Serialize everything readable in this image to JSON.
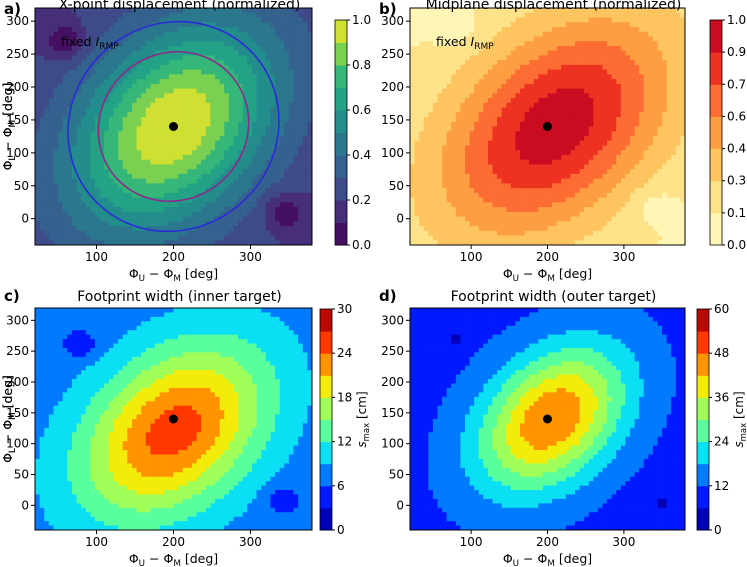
{
  "chart_data": [
    {
      "panel_letter": "a)",
      "type": "heatmap",
      "title": "X-point displacement (normalized)",
      "annotation_main": "fixed ",
      "annotation_italic": "I",
      "annotation_sub": "RMP",
      "xlabel_main": "Φ",
      "xlabel_sub1": "U",
      "xlabel_mid": " − Φ",
      "xlabel_sub2": "M",
      "xlabel_unit": " [deg]",
      "ylabel_main": "Φ",
      "ylabel_sub1": "L",
      "ylabel_mid": " − Φ",
      "ylabel_sub2": "M",
      "ylabel_unit": " [deg]",
      "xlim": [
        20,
        380
      ],
      "ylim": [
        -40,
        320
      ],
      "x_ticks": [
        "100",
        "200",
        "300"
      ],
      "y_ticks": [
        "0",
        "50",
        "100",
        "150",
        "200",
        "250",
        "300"
      ],
      "colormap": "viridis",
      "colorbar_ticks": [
        "0.0",
        "0.2",
        "0.4",
        "0.6",
        "0.8",
        "1.0"
      ],
      "colorbar_range": [
        0,
        1
      ],
      "levels": [
        0.1,
        0.2,
        0.3,
        0.4,
        0.5,
        0.6,
        0.7,
        0.8,
        0.9
      ],
      "field": {
        "center": [
          200,
          140
        ],
        "peak": 1.0,
        "sx": 135,
        "sy": 160,
        "rho": 0.35,
        "base": 0.18,
        "lobes": [
          [
            60,
            270,
            -0.22,
            26
          ],
          [
            345,
            10,
            -0.2,
            26
          ]
        ]
      },
      "peak_marker": {
        "x": 200,
        "y": 140
      },
      "contour_lines": [
        {
          "level": 0.4,
          "color": "#2a2ad8"
        },
        {
          "level": 0.6,
          "color": "#8a2a8a"
        }
      ]
    },
    {
      "panel_letter": "b)",
      "type": "heatmap",
      "title": "Midplane displacement (normalized)",
      "annotation_main": "fixed ",
      "annotation_italic": "I",
      "annotation_sub": "RMP",
      "xlabel_main": "Φ",
      "xlabel_sub1": "U",
      "xlabel_mid": " − Φ",
      "xlabel_sub2": "M",
      "xlabel_unit": " [deg]",
      "ylabel_main": "Φ",
      "ylabel_sub1": "L",
      "ylabel_mid": " − Φ",
      "ylabel_sub2": "M",
      "ylabel_unit": " [deg]",
      "xlim": [
        20,
        380
      ],
      "ylim": [
        -40,
        320
      ],
      "x_ticks": [
        "100",
        "200",
        "300"
      ],
      "y_ticks": [
        "0",
        "50",
        "100",
        "150",
        "200",
        "250",
        "300"
      ],
      "colormap": "YlOrRd",
      "colorbar_ticks": [
        "0.00",
        "0.15",
        "0.30",
        "0.45",
        "0.60",
        "0.75",
        "0.90",
        "1.05"
      ],
      "colorbar_range": [
        0,
        1.05
      ],
      "levels": [
        0.15,
        0.3,
        0.45,
        0.6,
        0.75,
        0.9
      ],
      "field": {
        "center": [
          210,
          140
        ],
        "peak": 1.0,
        "sx": 150,
        "sy": 165,
        "rho": 0.4,
        "base": 0.12,
        "lobes": [
          [
            80,
            290,
            -0.12,
            30
          ],
          [
            340,
            20,
            -0.12,
            30
          ]
        ]
      },
      "peak_marker": {
        "x": 200,
        "y": 140
      },
      "contour_lines": []
    },
    {
      "panel_letter": "c)",
      "type": "heatmap",
      "title": "Footprint width (inner target)",
      "xlabel_main": "Φ",
      "xlabel_sub1": "U",
      "xlabel_mid": " − Φ",
      "xlabel_sub2": "M",
      "xlabel_unit": " [deg]",
      "ylabel_main": "Φ",
      "ylabel_sub1": "L",
      "ylabel_mid": " − Φ",
      "ylabel_sub2": "M",
      "ylabel_unit": " [deg]",
      "xlim": [
        20,
        380
      ],
      "ylim": [
        -40,
        320
      ],
      "x_ticks": [
        "100",
        "200",
        "300"
      ],
      "y_ticks": [
        "0",
        "50",
        "100",
        "150",
        "200",
        "250",
        "300"
      ],
      "colormap": "jet",
      "colorbar_ticks": [
        "0",
        "6",
        "12",
        "18",
        "24",
        "30"
      ],
      "colorbar_range": [
        0,
        30
      ],
      "cb_label_main": "s",
      "cb_label_sub": "max",
      "cb_label_unit": " [cm]",
      "levels": [
        3,
        6,
        9,
        12,
        15,
        18,
        21,
        24,
        27
      ],
      "field": {
        "center": [
          200,
          120
        ],
        "peak": 25.5,
        "sx": 120,
        "sy": 140,
        "rho": 0.35,
        "base": 7,
        "lobes": [
          [
            80,
            260,
            -4,
            22
          ],
          [
            340,
            10,
            -4,
            22
          ]
        ]
      },
      "peak_marker": {
        "x": 200,
        "y": 140
      },
      "contour_lines": []
    },
    {
      "panel_letter": "d)",
      "type": "heatmap",
      "title": "Footprint width (outer target)",
      "xlabel_main": "Φ",
      "xlabel_sub1": "U",
      "xlabel_mid": " − Φ",
      "xlabel_sub2": "M",
      "xlabel_unit": " [deg]",
      "ylabel_main": "Φ",
      "ylabel_sub1": "L",
      "ylabel_mid": " − Φ",
      "ylabel_sub2": "M",
      "ylabel_unit": " [deg]",
      "xlim": [
        20,
        380
      ],
      "ylim": [
        -40,
        320
      ],
      "x_ticks": [
        "100",
        "200",
        "300"
      ],
      "y_ticks": [
        "0",
        "50",
        "100",
        "150",
        "200",
        "250",
        "300"
      ],
      "colormap": "jet",
      "colorbar_ticks": [
        "0",
        "12",
        "24",
        "36",
        "48",
        "60"
      ],
      "colorbar_range": [
        0,
        60
      ],
      "cb_label_main": "s",
      "cb_label_sub": "max",
      "cb_label_unit": " [cm]",
      "levels": [
        6,
        12,
        18,
        24,
        30,
        36,
        42,
        48,
        54
      ],
      "field": {
        "center": [
          205,
          140
        ],
        "peak": 48,
        "sx": 95,
        "sy": 115,
        "rho": 0.35,
        "base": 10,
        "lobes": [
          [
            80,
            270,
            -5,
            18
          ],
          [
            350,
            0,
            -5,
            18
          ]
        ]
      },
      "peak_marker": {
        "x": 200,
        "y": 140
      },
      "contour_lines": []
    }
  ]
}
